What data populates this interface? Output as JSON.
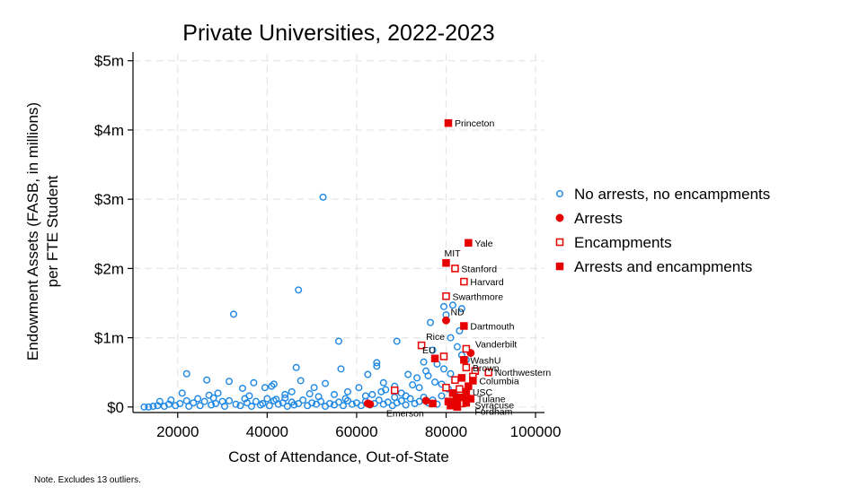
{
  "chart_data": {
    "type": "scatter",
    "title": "Private Universities, 2022-2023",
    "xlabel": "Cost of Attendance, Out-of-State",
    "ylabel_lines": [
      "Endowment Assets (FASB, in millions)",
      "per FTE Student"
    ],
    "xlim": [
      10000,
      102000
    ],
    "ylim": [
      -0.08,
      5.1
    ],
    "x_ticks": [
      20000,
      40000,
      60000,
      80000,
      100000
    ],
    "x_tick_labels": [
      "20000",
      "40000",
      "60000",
      "80000",
      "100000"
    ],
    "y_ticks": [
      0,
      1,
      2,
      3,
      4,
      5
    ],
    "y_tick_labels": [
      "$0",
      "$1m",
      "$2m",
      "$3m",
      "$4m",
      "$5m"
    ],
    "grid": true,
    "legend_position": "right",
    "note": "Note. Excludes 13 outliers.",
    "colors": {
      "blue": "#1e88e5",
      "red": "#e60000",
      "grid": "#e6e6e6"
    },
    "series": [
      {
        "name": "No arrests, no encampments",
        "marker": "hollow-circle",
        "points": [
          [
            52500,
            3.03
          ],
          [
            47000,
            1.69
          ],
          [
            32500,
            1.34
          ],
          [
            56000,
            0.95
          ],
          [
            69000,
            0.95
          ],
          [
            22000,
            0.48
          ],
          [
            26500,
            0.39
          ],
          [
            31500,
            0.37
          ],
          [
            46500,
            0.57
          ],
          [
            56500,
            0.55
          ],
          [
            64500,
            0.64
          ],
          [
            64500,
            0.59
          ],
          [
            62500,
            0.47
          ],
          [
            71500,
            0.47
          ],
          [
            75000,
            0.65
          ],
          [
            76500,
            1.22
          ],
          [
            79500,
            1.45
          ],
          [
            81500,
            1.47
          ],
          [
            80000,
            1.33
          ],
          [
            83500,
            1.42
          ],
          [
            83000,
            1.1
          ],
          [
            81000,
            1.0
          ],
          [
            77000,
            0.82
          ],
          [
            78000,
            0.62
          ],
          [
            82500,
            0.87
          ],
          [
            83500,
            0.75
          ],
          [
            79500,
            0.55
          ],
          [
            75500,
            0.52
          ],
          [
            81000,
            0.48
          ],
          [
            84500,
            0.68
          ],
          [
            73500,
            0.42
          ],
          [
            77500,
            0.36
          ],
          [
            72500,
            0.32
          ],
          [
            68500,
            0.3
          ],
          [
            66000,
            0.35
          ],
          [
            60500,
            0.28
          ],
          [
            58000,
            0.22
          ],
          [
            53000,
            0.34
          ],
          [
            50500,
            0.28
          ],
          [
            45500,
            0.22
          ],
          [
            41000,
            0.3
          ],
          [
            37000,
            0.35
          ],
          [
            34500,
            0.27
          ],
          [
            29000,
            0.2
          ],
          [
            27000,
            0.17
          ],
          [
            21000,
            0.2
          ],
          [
            18500,
            0.1
          ],
          [
            16000,
            0.08
          ],
          [
            24500,
            0.12
          ],
          [
            40000,
            0.12
          ],
          [
            47500,
            0.38
          ],
          [
            41500,
            0.33
          ],
          [
            39500,
            0.28
          ],
          [
            44000,
            0.18
          ],
          [
            55000,
            0.18
          ],
          [
            62000,
            0.16
          ],
          [
            65500,
            0.22
          ],
          [
            70000,
            0.2
          ],
          [
            74000,
            0.28
          ],
          [
            76000,
            0.45
          ],
          [
            79000,
            0.33
          ],
          [
            80500,
            0.26
          ],
          [
            82000,
            0.18
          ],
          [
            35000,
            0.12
          ],
          [
            30000,
            0.08
          ],
          [
            12500,
            0.0
          ],
          [
            13500,
            0.0
          ],
          [
            14500,
            0.01
          ],
          [
            15500,
            0.02
          ],
          [
            17000,
            0.01
          ],
          [
            18000,
            0.04
          ],
          [
            19500,
            0.02
          ],
          [
            20500,
            0.05
          ],
          [
            22500,
            0.01
          ],
          [
            23500,
            0.06
          ],
          [
            25000,
            0.02
          ],
          [
            26000,
            0.08
          ],
          [
            27500,
            0.03
          ],
          [
            28500,
            0.05
          ],
          [
            30500,
            0.01
          ],
          [
            31500,
            0.09
          ],
          [
            33000,
            0.04
          ],
          [
            34000,
            0.02
          ],
          [
            35500,
            0.06
          ],
          [
            36500,
            0.01
          ],
          [
            37500,
            0.08
          ],
          [
            38500,
            0.03
          ],
          [
            39000,
            0.05
          ],
          [
            40500,
            0.02
          ],
          [
            41500,
            0.09
          ],
          [
            42500,
            0.04
          ],
          [
            43500,
            0.06
          ],
          [
            44500,
            0.01
          ],
          [
            45500,
            0.07
          ],
          [
            46000,
            0.03
          ],
          [
            47000,
            0.05
          ],
          [
            48000,
            0.1
          ],
          [
            49000,
            0.02
          ],
          [
            50000,
            0.06
          ],
          [
            51000,
            0.04
          ],
          [
            52000,
            0.08
          ],
          [
            53000,
            0.01
          ],
          [
            54000,
            0.05
          ],
          [
            55000,
            0.03
          ],
          [
            56000,
            0.07
          ],
          [
            57000,
            0.02
          ],
          [
            58000,
            0.09
          ],
          [
            59000,
            0.04
          ],
          [
            60000,
            0.06
          ],
          [
            61000,
            0.02
          ],
          [
            62000,
            0.08
          ],
          [
            63000,
            0.03
          ],
          [
            64000,
            0.05
          ],
          [
            65000,
            0.1
          ],
          [
            66000,
            0.04
          ],
          [
            67000,
            0.07
          ],
          [
            68000,
            0.02
          ],
          [
            69000,
            0.06
          ],
          [
            70000,
            0.09
          ],
          [
            71000,
            0.03
          ],
          [
            72000,
            0.12
          ],
          [
            73000,
            0.05
          ],
          [
            74000,
            0.08
          ],
          [
            75000,
            0.14
          ],
          [
            76000,
            0.06
          ],
          [
            77000,
            0.1
          ],
          [
            78000,
            0.04
          ],
          [
            79000,
            0.16
          ],
          [
            44000,
            0.13
          ],
          [
            51500,
            0.15
          ],
          [
            57500,
            0.12
          ],
          [
            63500,
            0.18
          ],
          [
            68500,
            0.14
          ],
          [
            22000,
            0.09
          ],
          [
            28000,
            0.13
          ],
          [
            36000,
            0.16
          ],
          [
            42000,
            0.11
          ],
          [
            49500,
            0.19
          ],
          [
            66500,
            0.25
          ],
          [
            71000,
            0.16
          ]
        ]
      },
      {
        "name": "Arrests",
        "marker": "filled-circle",
        "points": [
          [
            80000,
            1.25
          ],
          [
            85500,
            0.78
          ],
          [
            75500,
            0.09
          ],
          [
            63000,
            0.04
          ],
          [
            62500,
            0.05
          ],
          [
            82000,
            0.09
          ],
          [
            84000,
            0.12
          ]
        ]
      },
      {
        "name": "Encampments",
        "marker": "hollow-square",
        "points": [
          [
            82000,
            2.0
          ],
          [
            84000,
            1.81
          ],
          [
            80000,
            1.6
          ],
          [
            74500,
            0.89
          ],
          [
            79500,
            0.73
          ],
          [
            84500,
            0.84
          ],
          [
            86500,
            0.52
          ],
          [
            89500,
            0.5
          ],
          [
            68500,
            0.24
          ],
          [
            84500,
            0.57
          ],
          [
            82000,
            0.39
          ],
          [
            80000,
            0.28
          ],
          [
            83000,
            0.26
          ],
          [
            86000,
            0.44
          ],
          [
            83500,
            0.05
          ]
        ]
      },
      {
        "name": "Arrests and encampments",
        "marker": "filled-square",
        "points": [
          [
            80500,
            4.1
          ],
          [
            85000,
            2.37
          ],
          [
            80000,
            2.08
          ],
          [
            84000,
            1.17
          ],
          [
            77500,
            0.7
          ],
          [
            84000,
            0.68
          ],
          [
            86000,
            0.38
          ],
          [
            84500,
            0.22
          ],
          [
            83000,
            0.14
          ],
          [
            84500,
            0.06
          ],
          [
            82500,
            0.1
          ],
          [
            81500,
            0.2
          ],
          [
            83500,
            0.42
          ],
          [
            85000,
            0.3
          ],
          [
            77000,
            0.05
          ],
          [
            81000,
            0.02
          ],
          [
            82500,
            0.0
          ],
          [
            85500,
            0.12
          ],
          [
            80500,
            0.08
          ]
        ]
      }
    ],
    "annotations": [
      {
        "text": "Princeton",
        "x": 80500,
        "y": 4.1,
        "anchor": "right"
      },
      {
        "text": "Yale",
        "x": 85000,
        "y": 2.37,
        "anchor": "right"
      },
      {
        "text": "MIT",
        "x": 80000,
        "y": 2.08,
        "anchor": "above"
      },
      {
        "text": "Stanford",
        "x": 82000,
        "y": 2.0,
        "anchor": "right"
      },
      {
        "text": "Harvard",
        "x": 84000,
        "y": 1.81,
        "anchor": "right"
      },
      {
        "text": "Swarthmore",
        "x": 80000,
        "y": 1.6,
        "anchor": "right"
      },
      {
        "text": "ND",
        "x": 80000,
        "y": 1.25,
        "anchor": "above-right"
      },
      {
        "text": "Dartmouth",
        "x": 84000,
        "y": 1.17,
        "anchor": "right"
      },
      {
        "text": "Rice",
        "x": 74500,
        "y": 0.89,
        "anchor": "above-right"
      },
      {
        "text": "Vanderbilt",
        "x": 85500,
        "y": 0.78,
        "anchor": "above-right"
      },
      {
        "text": "EU",
        "x": 77500,
        "y": 0.7,
        "anchor": "above-left"
      },
      {
        "text": "WashU",
        "x": 84000,
        "y": 0.68,
        "anchor": "right"
      },
      {
        "text": "Brown",
        "x": 84500,
        "y": 0.57,
        "anchor": "right"
      },
      {
        "text": "Northwestern",
        "x": 89500,
        "y": 0.5,
        "anchor": "right"
      },
      {
        "text": "Columbia",
        "x": 86000,
        "y": 0.38,
        "anchor": "right"
      },
      {
        "text": "USC",
        "x": 84500,
        "y": 0.22,
        "anchor": "right"
      },
      {
        "text": "Tulane",
        "x": 85500,
        "y": 0.12,
        "anchor": "right"
      },
      {
        "text": "Emerson",
        "x": 63000,
        "y": 0.04,
        "anchor": "below-right"
      },
      {
        "text": "Syracuse",
        "x": 85000,
        "y": 0.03,
        "anchor": "right"
      },
      {
        "text": "Fordham",
        "x": 85000,
        "y": -0.06,
        "anchor": "right"
      }
    ]
  }
}
